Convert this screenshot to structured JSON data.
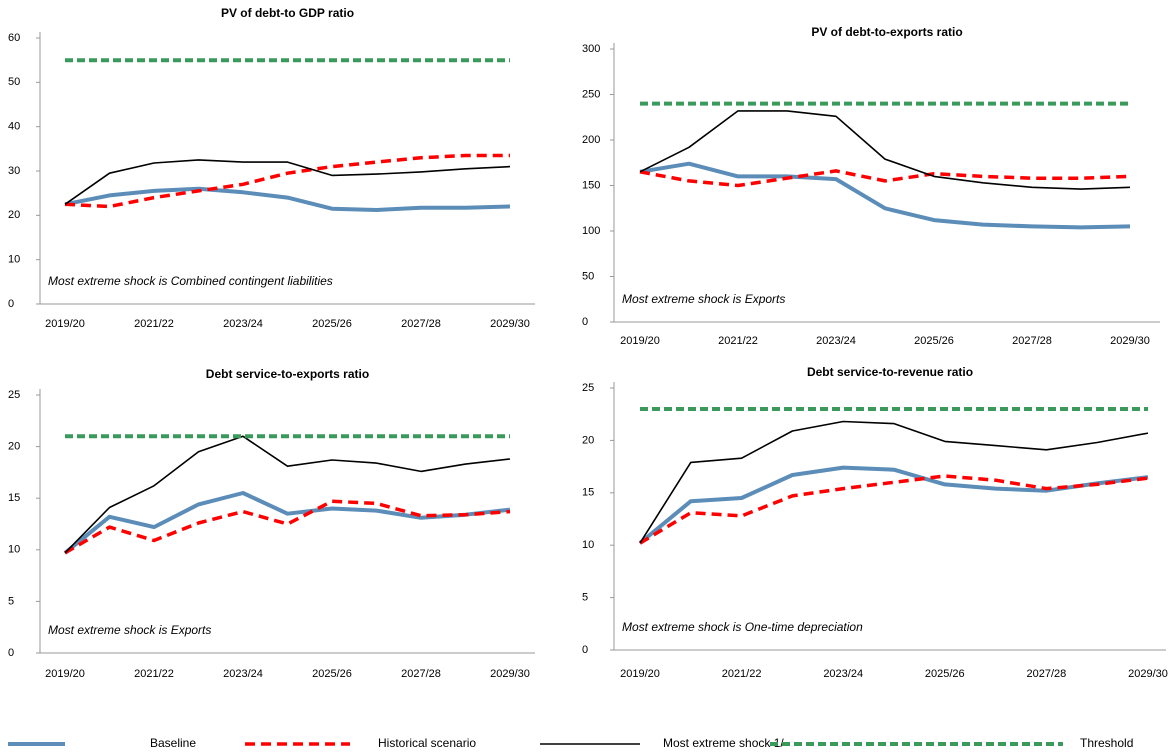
{
  "chart_data": [
    {
      "type": "line",
      "title": "PV of debt-to GDP ratio",
      "categories": [
        "2019/20",
        null,
        "2021/22",
        null,
        "2023/24",
        null,
        "2025/26",
        null,
        "2027/28",
        null,
        "2029/30"
      ],
      "ylim": [
        0,
        60
      ],
      "yticks": [
        0,
        10,
        20,
        30,
        40,
        50,
        60
      ],
      "annotation": "Most extreme shock is Combined contingent liabilities",
      "series": [
        {
          "name": "Baseline",
          "color": "#5b8db8",
          "dashed": false,
          "values": [
            22.5,
            24.5,
            25.5,
            26,
            25.2,
            24,
            21.5,
            21.2,
            21.7,
            21.7,
            22
          ]
        },
        {
          "name": "Historical scenario",
          "color": "#ff0000",
          "dashed": true,
          "values": [
            22.5,
            22,
            24,
            25.5,
            27,
            29.5,
            31,
            32,
            33,
            33.5,
            33.5
          ]
        },
        {
          "name": "Most extreme shock 1/",
          "color": "#000000",
          "dashed": false,
          "values": [
            22.5,
            29.5,
            31.8,
            32.5,
            32,
            32,
            29,
            29.3,
            29.8,
            30.5,
            31
          ]
        },
        {
          "name": "Threshold",
          "color": "#3a9a5b",
          "dashed": true,
          "values": [
            55,
            55,
            55,
            55,
            55,
            55,
            55,
            55,
            55,
            55,
            55
          ]
        }
      ]
    },
    {
      "type": "line",
      "title": "PV of debt-to-exports ratio",
      "categories": [
        "2019/20",
        null,
        "2021/22",
        null,
        "2023/24",
        null,
        "2025/26",
        null,
        "2027/28",
        null,
        "2029/30"
      ],
      "ylim": [
        0,
        300
      ],
      "yticks": [
        0,
        50,
        100,
        150,
        200,
        250,
        300
      ],
      "annotation": "Most extreme shock is Exports",
      "series": [
        {
          "name": "Baseline",
          "color": "#5b8db8",
          "dashed": false,
          "values": [
            165,
            174,
            160,
            160,
            157,
            125,
            112,
            107,
            105,
            104,
            105
          ]
        },
        {
          "name": "Historical scenario",
          "color": "#ff0000",
          "dashed": true,
          "values": [
            165,
            155,
            150,
            158,
            166,
            155,
            163,
            160,
            158,
            158,
            160
          ]
        },
        {
          "name": "Most extreme shock 1/",
          "color": "#000000",
          "dashed": false,
          "values": [
            165,
            192,
            232,
            232,
            226,
            179,
            160,
            153,
            148,
            146,
            148
          ]
        },
        {
          "name": "Threshold",
          "color": "#3a9a5b",
          "dashed": true,
          "values": [
            240,
            240,
            240,
            240,
            240,
            240,
            240,
            240,
            240,
            240,
            240
          ]
        }
      ]
    },
    {
      "type": "line",
      "title": "Debt service-to-exports ratio",
      "categories": [
        "2019/20",
        null,
        "2021/22",
        null,
        "2023/24",
        null,
        "2025/26",
        null,
        "2027/28",
        null,
        "2029/30"
      ],
      "ylim": [
        0,
        25
      ],
      "yticks": [
        0,
        5,
        10,
        15,
        20,
        25
      ],
      "annotation": "Most extreme shock is Exports",
      "series": [
        {
          "name": "Baseline",
          "color": "#5b8db8",
          "dashed": false,
          "values": [
            9.7,
            13.2,
            12.2,
            14.4,
            15.5,
            13.5,
            14,
            13.8,
            13.1,
            13.4,
            13.9
          ]
        },
        {
          "name": "Historical scenario",
          "color": "#ff0000",
          "dashed": true,
          "values": [
            9.7,
            12.2,
            10.9,
            12.6,
            13.7,
            12.5,
            14.7,
            14.5,
            13.3,
            13.4,
            13.7
          ]
        },
        {
          "name": "Most extreme shock 1/",
          "color": "#000000",
          "dashed": false,
          "values": [
            9.7,
            14.1,
            16.2,
            19.5,
            21,
            18.1,
            18.7,
            18.4,
            17.6,
            18.3,
            18.8
          ]
        },
        {
          "name": "Threshold",
          "color": "#3a9a5b",
          "dashed": true,
          "values": [
            21,
            21,
            21,
            21,
            21,
            21,
            21,
            21,
            21,
            21,
            21
          ]
        }
      ]
    },
    {
      "type": "line",
      "title": "Debt service-to-revenue ratio",
      "categories": [
        "2019/20",
        null,
        "2021/22",
        null,
        "2023/24",
        null,
        "2025/26",
        null,
        "2027/28",
        null,
        "2029/30"
      ],
      "ylim": [
        0,
        25
      ],
      "yticks": [
        0,
        5,
        10,
        15,
        20,
        25
      ],
      "annotation": "Most extreme shock is One-time depreciation",
      "series": [
        {
          "name": "Baseline",
          "color": "#5b8db8",
          "dashed": false,
          "values": [
            10.2,
            14.2,
            14.5,
            16.7,
            17.4,
            17.2,
            15.8,
            15.4,
            15.2,
            15.9,
            16.5
          ]
        },
        {
          "name": "Historical scenario",
          "color": "#ff0000",
          "dashed": true,
          "values": [
            10.2,
            13.1,
            12.8,
            14.7,
            15.4,
            16.0,
            16.6,
            16.2,
            15.4,
            15.8,
            16.4
          ]
        },
        {
          "name": "Most extreme shock 1/",
          "color": "#000000",
          "dashed": false,
          "values": [
            10.2,
            17.9,
            18.3,
            20.9,
            21.8,
            21.6,
            19.9,
            19.5,
            19.1,
            19.8,
            20.7
          ]
        },
        {
          "name": "Threshold",
          "color": "#3a9a5b",
          "dashed": true,
          "values": [
            23,
            23,
            23,
            23,
            23,
            23,
            23,
            23,
            23,
            23,
            23
          ]
        }
      ]
    }
  ]
}
